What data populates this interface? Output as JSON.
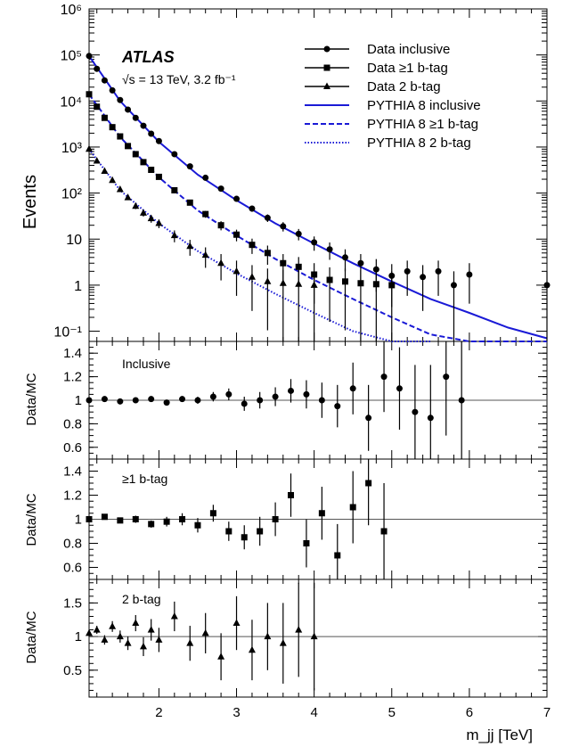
{
  "chart_data": [
    {
      "type": "scatter",
      "panel": "main",
      "title": "ATLAS",
      "subtitle": "√s = 13 TeV,  3.2 fb⁻¹",
      "ylabel": "Events",
      "xlabel": "m_jj [TeV]",
      "yscale": "log",
      "xlim": [
        1.1,
        7.0
      ],
      "ylim": [
        0.06,
        1000000
      ],
      "y_tick_labels": [
        "10⁻¹",
        "1",
        "10",
        "10²",
        "10³",
        "10⁴",
        "10⁵",
        "10⁶"
      ],
      "legend": [
        "Data inclusive",
        "Data ≥1 b-tag",
        "Data 2 b-tag",
        "PYTHIA 8 inclusive",
        "PYTHIA 8 ≥1 b-tag",
        "PYTHIA 8 2 b-tag"
      ],
      "legend_position": "top-right",
      "series": [
        {
          "name": "Data inclusive",
          "marker": "circle",
          "x": [
            1.1,
            1.2,
            1.3,
            1.4,
            1.5,
            1.6,
            1.7,
            1.8,
            1.9,
            2.0,
            2.2,
            2.4,
            2.6,
            2.8,
            3.0,
            3.2,
            3.4,
            3.6,
            3.8,
            4.0,
            4.2,
            4.4,
            4.6,
            4.8,
            5.0,
            5.2,
            5.4,
            5.6,
            5.8,
            6.0,
            7.0
          ],
          "y": [
            95000,
            50000,
            28000,
            17000,
            10500,
            6500,
            4300,
            2900,
            1950,
            1350,
            700,
            380,
            215,
            125,
            75,
            46,
            29,
            19,
            13,
            8.5,
            6,
            4,
            3,
            2.2,
            1.6,
            2,
            1.5,
            2,
            1,
            1.7,
            1
          ]
        },
        {
          "name": "Data ≥1 b-tag",
          "marker": "square",
          "x": [
            1.1,
            1.2,
            1.3,
            1.4,
            1.5,
            1.6,
            1.7,
            1.8,
            1.9,
            2.0,
            2.2,
            2.4,
            2.6,
            2.8,
            3.0,
            3.2,
            3.4,
            3.6,
            3.8,
            4.0,
            4.2,
            4.4,
            4.6,
            4.8,
            5.0
          ],
          "y": [
            14000,
            7500,
            4300,
            2700,
            1700,
            1050,
            700,
            470,
            320,
            225,
            115,
            62,
            35,
            20,
            12.5,
            7.5,
            5,
            3,
            2.5,
            1.7,
            1.3,
            1.2,
            1.1,
            1.05,
            1.0
          ]
        },
        {
          "name": "Data 2 b-tag",
          "marker": "triangle",
          "x": [
            1.1,
            1.2,
            1.3,
            1.4,
            1.5,
            1.6,
            1.7,
            1.8,
            1.9,
            2.0,
            2.2,
            2.4,
            2.6,
            2.8,
            3.0,
            3.2,
            3.4,
            3.6,
            3.8,
            4.0
          ],
          "y": [
            900,
            500,
            300,
            190,
            120,
            80,
            52,
            37,
            28,
            22,
            12,
            7,
            4.5,
            3,
            2,
            1.5,
            1.2,
            1.1,
            1.05,
            1.0
          ]
        },
        {
          "name": "PYTHIA 8 inclusive",
          "line": "solid",
          "x": [
            1.1,
            1.5,
            2.0,
            2.5,
            3.0,
            3.5,
            4.0,
            4.5,
            5.0,
            5.5,
            6.0,
            6.5,
            7.0
          ],
          "y": [
            95000,
            10000,
            1300,
            250,
            70,
            22,
            8,
            3,
            1.2,
            0.5,
            0.25,
            0.12,
            0.07
          ]
        },
        {
          "name": "PYTHIA 8 ≥1 b-tag",
          "line": "dashed",
          "x": [
            1.1,
            1.5,
            2.0,
            2.5,
            3.0,
            3.5,
            4.0,
            4.5,
            5.0,
            5.5,
            6.0,
            6.5,
            7.0
          ],
          "y": [
            14000,
            1650,
            220,
            42,
            12,
            3.7,
            1.3,
            0.5,
            0.2,
            0.085,
            0.05,
            0.04,
            0.035
          ]
        },
        {
          "name": "PYTHIA 8 2 b-tag",
          "line": "dotted",
          "x": [
            1.1,
            1.5,
            2.0,
            2.5,
            3.0,
            3.5,
            4.0,
            4.5,
            5.0,
            5.5
          ],
          "y": [
            900,
            115,
            22,
            5.5,
            1.8,
            0.65,
            0.25,
            0.1,
            0.05,
            0.03
          ]
        }
      ]
    },
    {
      "type": "scatter",
      "panel": "ratio-inclusive",
      "label": "Inclusive",
      "ylabel": "Data/MC",
      "ylim": [
        0.5,
        1.5
      ],
      "y_tick_labels": [
        "0.6",
        "0.8",
        "1",
        "1.2",
        "1.4"
      ],
      "reference_line": 1,
      "x": [
        1.1,
        1.3,
        1.5,
        1.7,
        1.9,
        2.1,
        2.3,
        2.5,
        2.7,
        2.9,
        3.1,
        3.3,
        3.5,
        3.7,
        3.9,
        4.1,
        4.3,
        4.5,
        4.7,
        4.9,
        5.1,
        5.3,
        5.5,
        5.7,
        5.9
      ],
      "y": [
        1.0,
        1.01,
        0.99,
        1.0,
        1.01,
        0.98,
        1.01,
        1.0,
        1.03,
        1.05,
        0.97,
        1.0,
        1.03,
        1.08,
        1.05,
        1.0,
        0.95,
        1.1,
        0.85,
        1.2,
        1.1,
        0.9,
        0.85,
        1.2,
        1.0
      ],
      "err": [
        0.01,
        0.01,
        0.01,
        0.01,
        0.02,
        0.02,
        0.02,
        0.03,
        0.04,
        0.05,
        0.06,
        0.07,
        0.08,
        0.1,
        0.12,
        0.15,
        0.18,
        0.22,
        0.28,
        0.3,
        0.35,
        0.4,
        0.45,
        0.5,
        0.55
      ]
    },
    {
      "type": "scatter",
      "panel": "ratio-1btag",
      "label": "≥1 b-tag",
      "ylabel": "Data/MC",
      "ylim": [
        0.5,
        1.5
      ],
      "y_tick_labels": [
        "0.6",
        "0.8",
        "1",
        "1.2",
        "1.4"
      ],
      "reference_line": 1,
      "x": [
        1.1,
        1.3,
        1.5,
        1.7,
        1.9,
        2.1,
        2.3,
        2.5,
        2.7,
        2.9,
        3.1,
        3.3,
        3.5,
        3.7,
        3.9,
        4.1,
        4.3,
        4.5,
        4.7,
        4.9
      ],
      "y": [
        1.0,
        1.02,
        0.99,
        1.0,
        0.96,
        0.98,
        1.0,
        0.95,
        1.05,
        0.9,
        0.85,
        0.9,
        1.0,
        1.2,
        0.8,
        1.05,
        0.7,
        1.1,
        1.3,
        0.9
      ],
      "err": [
        0.02,
        0.02,
        0.02,
        0.03,
        0.03,
        0.04,
        0.05,
        0.06,
        0.07,
        0.08,
        0.1,
        0.12,
        0.14,
        0.18,
        0.2,
        0.22,
        0.26,
        0.3,
        0.35,
        0.4
      ]
    },
    {
      "type": "scatter",
      "panel": "ratio-2btag",
      "label": "2 b-tag",
      "ylabel": "Data/MC",
      "xlabel": "m_jj [TeV]",
      "ylim": [
        0.1,
        1.85
      ],
      "y_tick_labels": [
        "0.5",
        "1",
        "1.5"
      ],
      "x_tick_labels": [
        "2",
        "3",
        "4",
        "5",
        "6",
        "7"
      ],
      "reference_line": 1,
      "x": [
        1.1,
        1.2,
        1.3,
        1.4,
        1.5,
        1.6,
        1.7,
        1.8,
        1.9,
        2.0,
        2.2,
        2.4,
        2.6,
        2.8,
        3.0,
        3.2,
        3.4,
        3.6,
        3.8,
        4.0
      ],
      "y": [
        1.05,
        1.1,
        0.95,
        1.15,
        1.0,
        0.9,
        1.2,
        0.85,
        1.1,
        0.95,
        1.3,
        0.9,
        1.05,
        0.7,
        1.2,
        0.8,
        1.0,
        0.9,
        1.1,
        1.0
      ],
      "err": [
        0.05,
        0.06,
        0.07,
        0.08,
        0.09,
        0.1,
        0.12,
        0.14,
        0.16,
        0.18,
        0.22,
        0.26,
        0.3,
        0.35,
        0.4,
        0.45,
        0.5,
        0.6,
        0.7,
        0.8
      ]
    }
  ]
}
